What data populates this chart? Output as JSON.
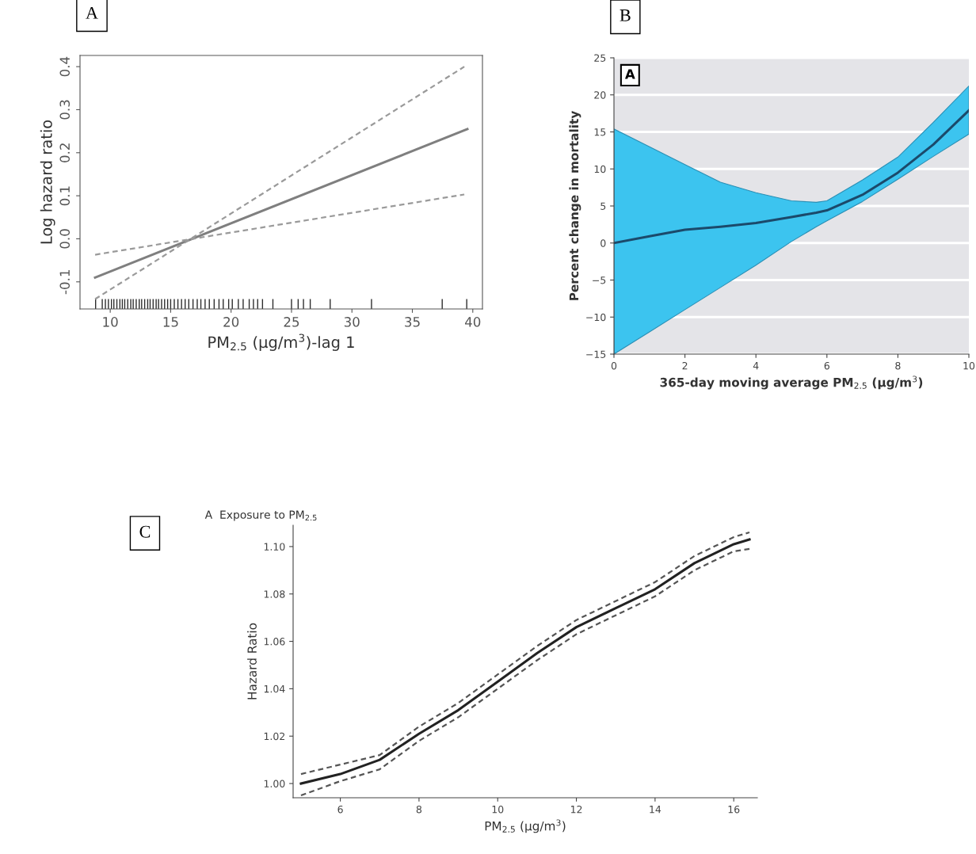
{
  "chart_data": [
    {
      "type": "line",
      "ylabel": "Log hazard ratio",
      "xlabel": "PM$_{2.5}$ (μg/m$^{3}$)-lag 1",
      "annotations": [
        "A"
      ],
      "xlim": [
        7.5,
        40.8
      ],
      "ylim": [
        -0.163,
        0.426
      ],
      "xticks": [
        10,
        15,
        20,
        25,
        30,
        35,
        40
      ],
      "yticks": [
        -0.1,
        {
          "value": 0,
          "label": "0.0"
        },
        0.1,
        0.2,
        0.3,
        0.4
      ],
      "grid": false,
      "series": [
        {
          "color": "#7f7f7f",
          "line_style": "solid",
          "x": [
            8.75,
            39.55
          ],
          "values": [
            -0.09,
            0.255
          ]
        },
        {
          "color": "#9a9a9a",
          "line_style": "dashed",
          "x": [
            8.75,
            39.3
          ],
          "values": [
            -0.14,
            0.4
          ]
        },
        {
          "color": "#9a9a9a",
          "line_style": "dashed",
          "x": [
            8.75,
            39.3
          ],
          "values": [
            -0.037,
            0.103
          ]
        },
        {
          "type": "bar",
          "color": "#2b2b2b",
          "x": [
            8.79,
            9.34,
            9.6,
            9.85,
            10.1,
            10.3,
            10.55,
            10.8,
            11.0,
            11.2,
            11.45,
            11.7,
            11.9,
            12.15,
            12.4,
            12.6,
            12.85,
            13.1,
            13.3,
            13.55,
            13.8,
            14.0,
            14.25,
            14.5,
            14.75,
            15.0,
            15.3,
            15.6,
            15.9,
            16.2,
            16.5,
            16.85,
            17.2,
            17.5,
            17.85,
            18.2,
            18.6,
            19.0,
            19.35,
            19.8,
            20.1,
            20.6,
            21.0,
            21.5,
            21.85,
            22.2,
            22.6,
            23.46,
            25.0,
            25.55,
            25.99,
            26.55,
            28.2,
            31.62,
            37.47,
            39.5
          ],
          "values": [
            0.023,
            0.023,
            0.023,
            0.023,
            0.023,
            0.023,
            0.023,
            0.023,
            0.023,
            0.023,
            0.023,
            0.023,
            0.023,
            0.023,
            0.023,
            0.023,
            0.023,
            0.023,
            0.023,
            0.023,
            0.023,
            0.023,
            0.023,
            0.023,
            0.023,
            0.023,
            0.023,
            0.023,
            0.023,
            0.023,
            0.023,
            0.023,
            0.023,
            0.023,
            0.023,
            0.023,
            0.023,
            0.023,
            0.023,
            0.023,
            0.023,
            0.023,
            0.023,
            0.023,
            0.023,
            0.023,
            0.023,
            0.023,
            0.023,
            0.023,
            0.023,
            0.023,
            0.023,
            0.023,
            0.023,
            0.023
          ],
          "base": [
            -0.163,
            -0.163,
            -0.163,
            -0.163,
            -0.163,
            -0.163,
            -0.163,
            -0.163,
            -0.163,
            -0.163,
            -0.163,
            -0.163,
            -0.163,
            -0.163,
            -0.163,
            -0.163,
            -0.163,
            -0.163,
            -0.163,
            -0.163,
            -0.163,
            -0.163,
            -0.163,
            -0.163,
            -0.163,
            -0.163,
            -0.163,
            -0.163,
            -0.163,
            -0.163,
            -0.163,
            -0.163,
            -0.163,
            -0.163,
            -0.163,
            -0.163,
            -0.163,
            -0.163,
            -0.163,
            -0.163,
            -0.163,
            -0.163,
            -0.163,
            -0.163,
            -0.163,
            -0.163,
            -0.163,
            -0.163,
            -0.163,
            -0.163,
            -0.163,
            -0.163,
            -0.163,
            -0.163,
            -0.163,
            -0.163
          ]
        }
      ]
    },
    {
      "type": "line",
      "ylabel": "Percent change in mortality",
      "xlabel": "365-day moving average PM$_{2.5}$ (μg/m$^{3}$)",
      "annotations": [
        "B",
        "A"
      ],
      "xlim": [
        0,
        10
      ],
      "ylim": [
        -15,
        25
      ],
      "xticks": [
        0,
        2,
        4,
        6,
        8,
        10
      ],
      "yticks": [
        {
          "value": -15,
          "label": "−15"
        },
        {
          "value": -10,
          "label": "−10"
        },
        {
          "value": -5,
          "label": "−5"
        },
        0,
        5,
        10,
        15,
        20,
        25
      ],
      "grid": "y",
      "series": [
        {
          "color": "#1b4a6b",
          "line_style": "solid",
          "x": [
            0,
            1,
            2,
            3,
            4,
            5,
            5.7,
            6,
            7,
            8,
            9,
            10
          ],
          "values": [
            0,
            0.9,
            1.8,
            2.2,
            2.7,
            3.5,
            4.1,
            4.4,
            6.5,
            9.5,
            13.3,
            17.9
          ],
          "upper": [
            15.4,
            13.0,
            10.6,
            8.2,
            6.8,
            5.7,
            5.5,
            5.7,
            8.5,
            11.6,
            16.3,
            21.2
          ],
          "lower": [
            -15,
            -12,
            -9,
            -6,
            -3,
            0.2,
            2.2,
            3.0,
            5.6,
            8.6,
            11.7,
            14.7
          ]
        }
      ]
    },
    {
      "type": "line",
      "title": "A  Exposure to PM$_{2.5}$",
      "ylabel": "Hazard Ratio",
      "xlabel": "PM$_{2.5}$ (μg/m$^{3}$)",
      "annotations": [
        "C"
      ],
      "xlim": [
        4.8,
        16.6
      ],
      "ylim": [
        0.994,
        1.109
      ],
      "xticks": [
        6,
        8,
        10,
        12,
        14,
        16
      ],
      "yticks": [
        {
          "value": 1.0,
          "label": "1.00"
        },
        {
          "value": 1.02,
          "label": "1.02"
        },
        {
          "value": 1.04,
          "label": "1.04"
        },
        {
          "value": 1.06,
          "label": "1.06"
        },
        {
          "value": 1.08,
          "label": "1.08"
        },
        {
          "value": 1.1,
          "label": "1.10"
        }
      ],
      "grid": false,
      "series": [
        {
          "color": "#222222",
          "line_style": "solid",
          "x": [
            5,
            6,
            7,
            8,
            9,
            10,
            11,
            12,
            13,
            14,
            15,
            16,
            16.4
          ],
          "values": [
            1.0,
            1.004,
            1.01,
            1.021,
            1.031,
            1.043,
            1.055,
            1.066,
            1.074,
            1.082,
            1.093,
            1.101,
            1.103
          ]
        },
        {
          "color": "#555555",
          "line_style": "dashed",
          "x": [
            5,
            6,
            7,
            8,
            9,
            10,
            11,
            12,
            13,
            14,
            15,
            16,
            16.4
          ],
          "values": [
            1.004,
            1.008,
            1.012,
            1.024,
            1.034,
            1.046,
            1.058,
            1.069,
            1.077,
            1.085,
            1.096,
            1.104,
            1.106
          ]
        },
        {
          "color": "#555555",
          "line_style": "dashed",
          "x": [
            5,
            6,
            7,
            8,
            9,
            10,
            11,
            12,
            13,
            14,
            15,
            16,
            16.4
          ],
          "values": [
            0.995,
            1.001,
            1.006,
            1.018,
            1.028,
            1.04,
            1.052,
            1.063,
            1.071,
            1.079,
            1.09,
            1.098,
            1.099
          ]
        }
      ]
    }
  ]
}
